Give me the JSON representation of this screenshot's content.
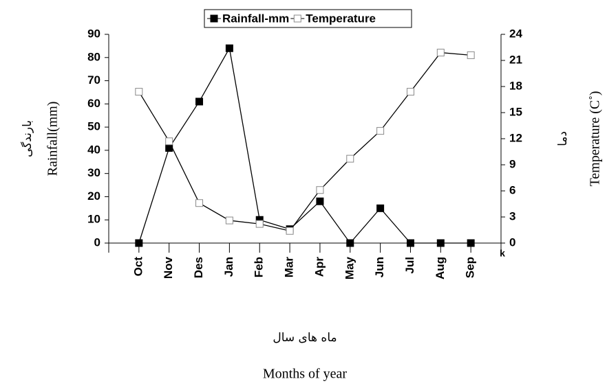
{
  "chart_data": {
    "type": "line",
    "categories": [
      null,
      "Oct",
      "Nov",
      "Des",
      "Jan",
      "Feb",
      "Mar",
      "Apr",
      "May",
      "Jun",
      "Jul",
      "Aug",
      "Sep",
      null
    ],
    "series": [
      {
        "name": "Rainfall-mm",
        "color": "#000000",
        "marker": "filled-square",
        "values": [
          null,
          0,
          41,
          61,
          84,
          10,
          6,
          18,
          0,
          15,
          0,
          0,
          0,
          null
        ]
      },
      {
        "name": "Temperature",
        "color": "#000000",
        "marker": "open-square",
        "axis": "y2",
        "values": [
          null,
          17.4,
          11.7,
          4.6,
          2.6,
          2.2,
          1.4,
          6.1,
          9.7,
          12.9,
          17.4,
          21.9,
          21.6,
          null
        ]
      }
    ],
    "ylim": [
      0,
      90
    ],
    "yticks": [
      0,
      10,
      20,
      30,
      40,
      50,
      60,
      70,
      80,
      90
    ],
    "y2lim": [
      0,
      24
    ],
    "y2ticks": [
      0,
      3,
      6,
      9,
      12,
      15,
      18,
      21,
      24
    ],
    "y_label": "Rainfall(mm)",
    "y_label_persian": "بارندگی",
    "y2_label": "Temperature (C˚)",
    "y2_label_persian": "دما",
    "x_label": "Months of year",
    "x_label_persian": "ماه های سال",
    "annotation": "k",
    "legend": "top"
  }
}
